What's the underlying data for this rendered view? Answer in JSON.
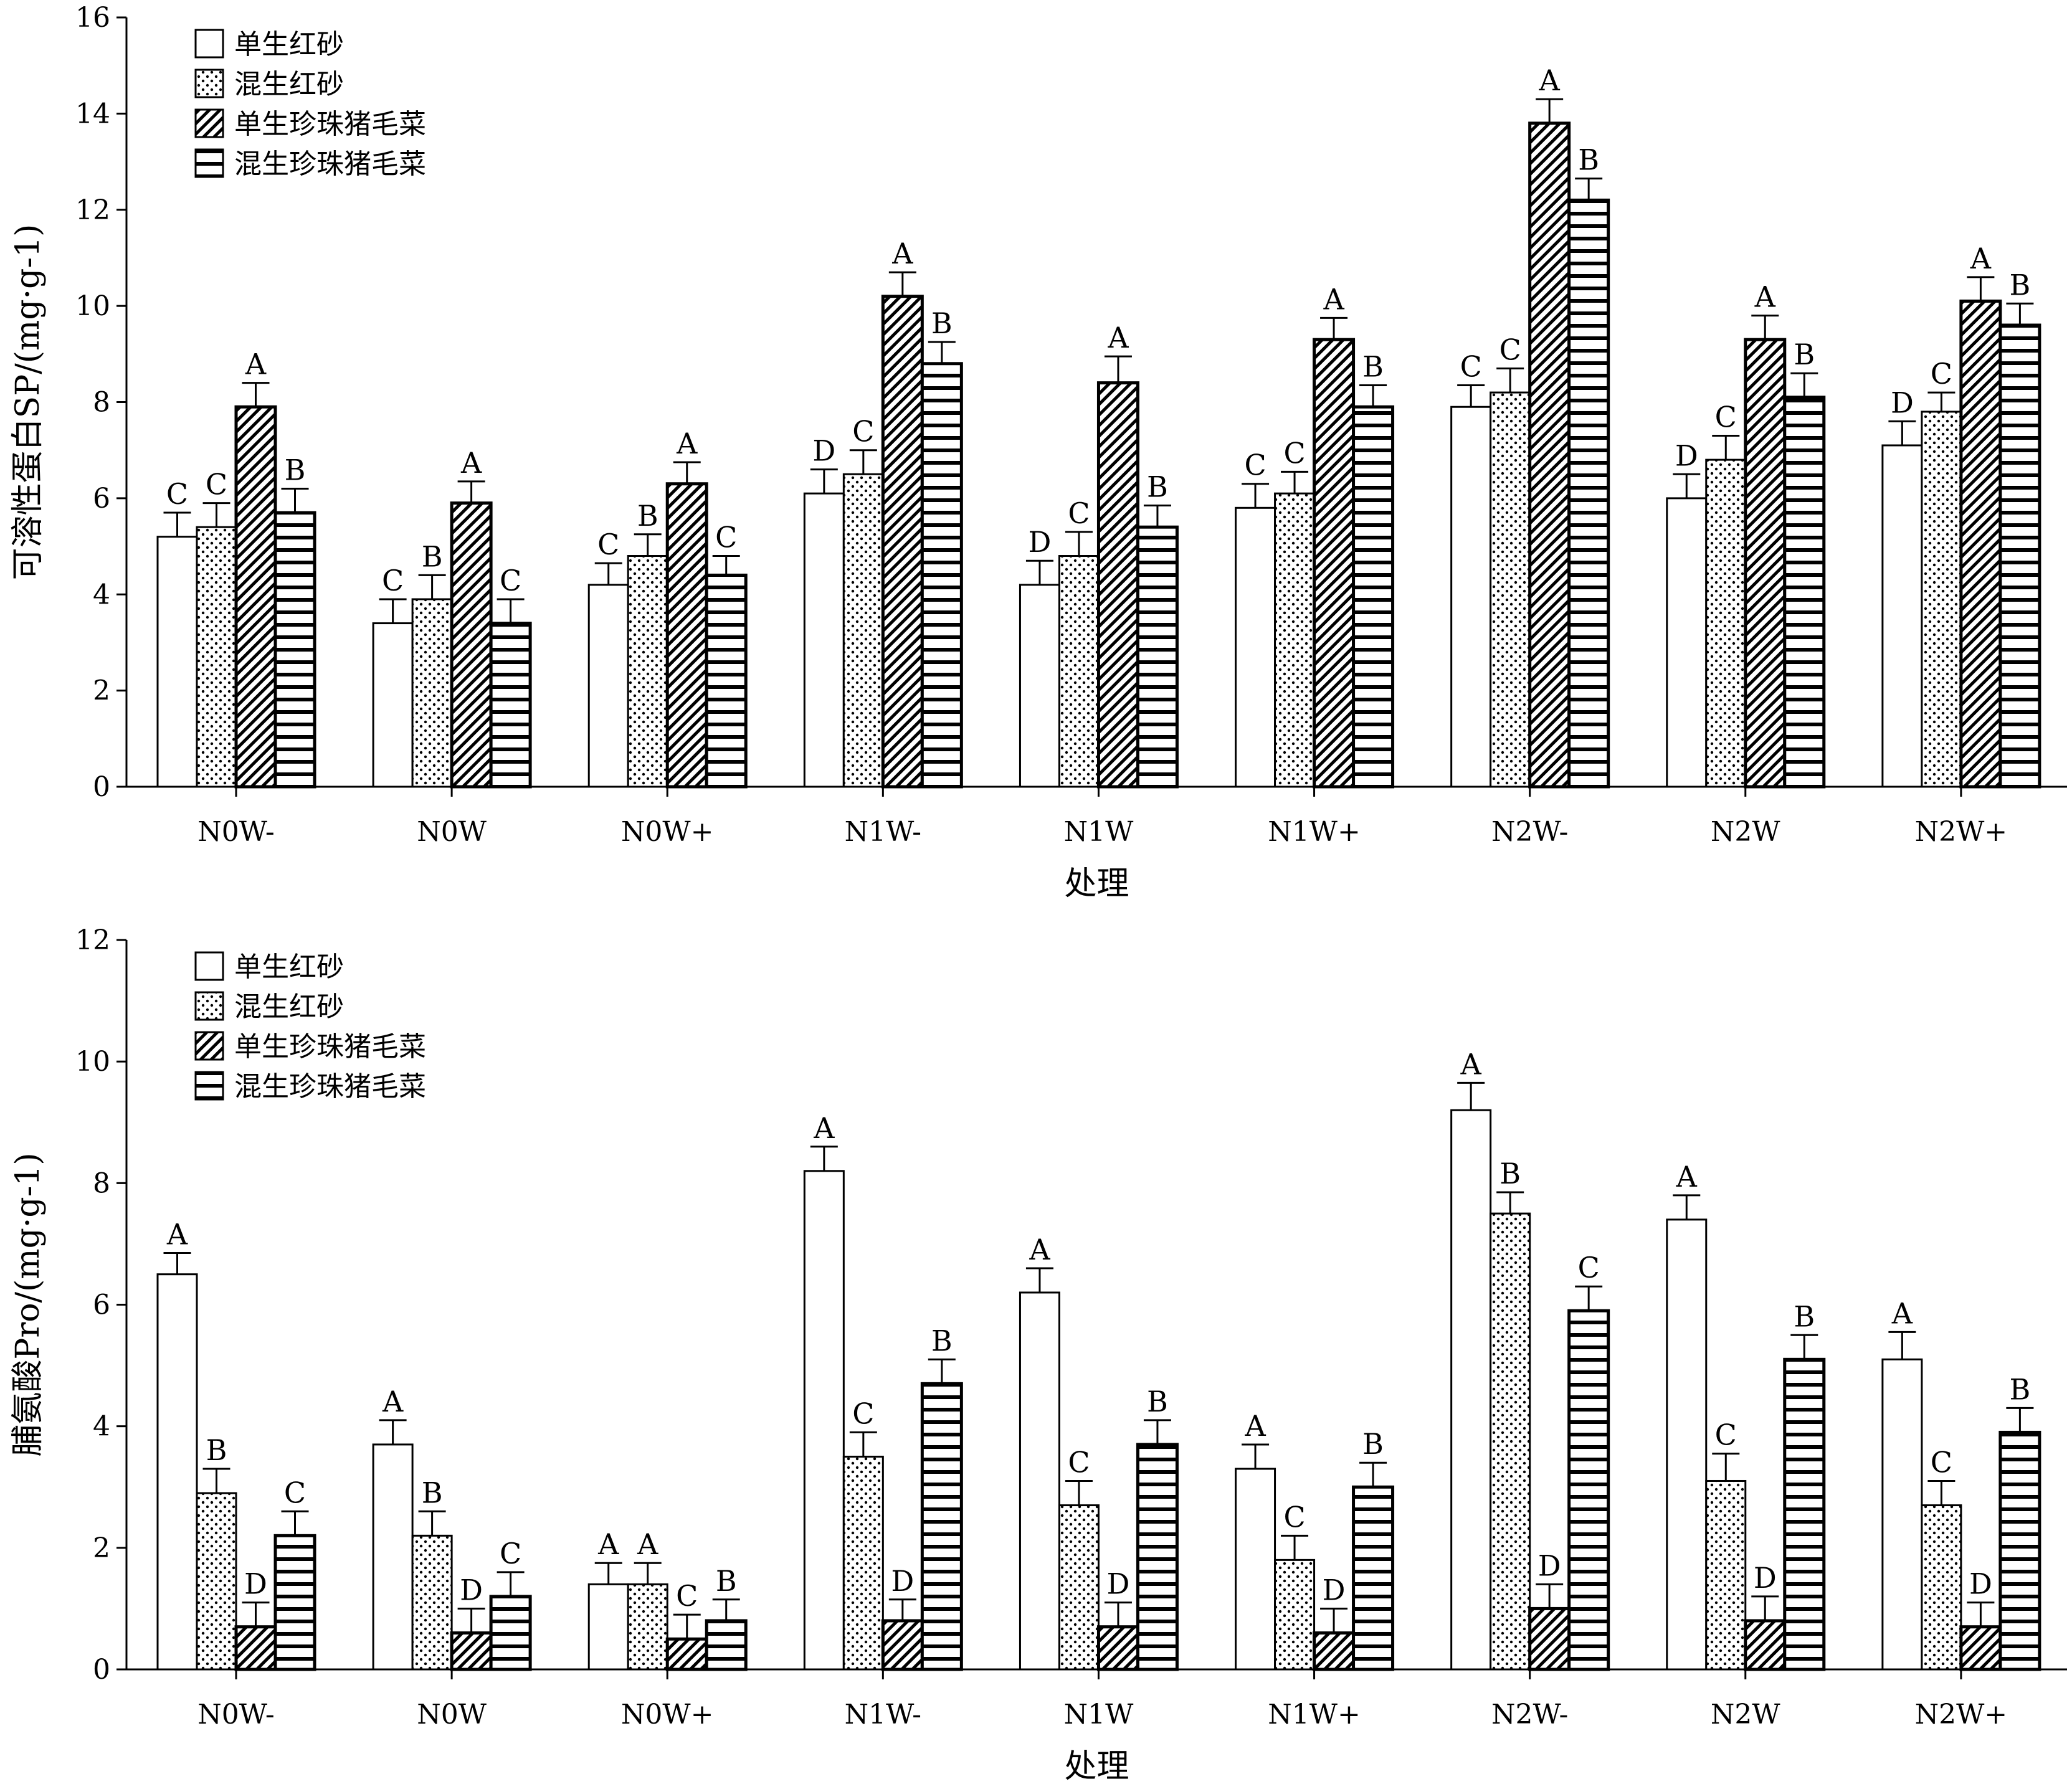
{
  "chart_data": [
    {
      "type": "bar",
      "ylabel": "可溶性蛋白SP/(mg·g-1)",
      "xlabel": "处理",
      "ylim": [
        0,
        16
      ],
      "yticks": [
        "0",
        "2",
        "4",
        "6",
        "8",
        "10",
        "12",
        "14",
        "16"
      ],
      "categories": [
        "N0W-",
        "N0W",
        "N0W+",
        "N1W-",
        "N1W",
        "N1W+",
        "N2W-",
        "N2W",
        "N2W+"
      ],
      "legend_position": "top-left",
      "series": [
        {
          "name": "单生红砂",
          "pattern": "open",
          "values": [
            5.2,
            3.4,
            4.2,
            6.1,
            4.2,
            5.8,
            7.9,
            6.0,
            7.1
          ],
          "errors": [
            0.5,
            0.5,
            0.45,
            0.5,
            0.5,
            0.5,
            0.45,
            0.5,
            0.5
          ],
          "letters": [
            "C",
            "C",
            "C",
            "D",
            "D",
            "C",
            "C",
            "D",
            "D"
          ]
        },
        {
          "name": "混生红砂",
          "pattern": "dots",
          "values": [
            5.4,
            3.9,
            4.8,
            6.5,
            4.8,
            6.1,
            8.2,
            6.8,
            7.8
          ],
          "errors": [
            0.5,
            0.5,
            0.45,
            0.5,
            0.5,
            0.45,
            0.5,
            0.5,
            0.4
          ],
          "letters": [
            "C",
            "B",
            "B",
            "C",
            "C",
            "C",
            "C",
            "C",
            "C"
          ]
        },
        {
          "name": "单生珍珠猪毛菜",
          "pattern": "diagonal",
          "values": [
            7.9,
            5.9,
            6.3,
            10.2,
            8.4,
            9.3,
            13.8,
            9.3,
            10.1
          ],
          "errors": [
            0.5,
            0.45,
            0.45,
            0.5,
            0.55,
            0.45,
            0.5,
            0.5,
            0.5
          ],
          "letters": [
            "A",
            "A",
            "A",
            "A",
            "A",
            "A",
            "A",
            "A",
            "A"
          ]
        },
        {
          "name": "混生珍珠猪毛菜",
          "pattern": "horizontal",
          "values": [
            5.7,
            3.4,
            4.4,
            8.8,
            5.4,
            7.9,
            12.2,
            8.1,
            9.6
          ],
          "errors": [
            0.5,
            0.5,
            0.4,
            0.45,
            0.45,
            0.45,
            0.45,
            0.5,
            0.45
          ],
          "letters": [
            "B",
            "C",
            "C",
            "B",
            "B",
            "B",
            "B",
            "B",
            "B"
          ]
        }
      ]
    },
    {
      "type": "bar",
      "ylabel": "脯氨酸Pro/(mg·g-1)",
      "xlabel": "处理",
      "ylim": [
        0,
        12
      ],
      "yticks": [
        "0",
        "2",
        "4",
        "6",
        "8",
        "10",
        "12"
      ],
      "categories": [
        "N0W-",
        "N0W",
        "N0W+",
        "N1W-",
        "N1W",
        "N1W+",
        "N2W-",
        "N2W",
        "N2W+"
      ],
      "legend_position": "top-left",
      "series": [
        {
          "name": "单生红砂",
          "pattern": "open",
          "values": [
            6.5,
            3.7,
            1.4,
            8.2,
            6.2,
            3.3,
            9.2,
            7.4,
            5.1
          ],
          "errors": [
            0.35,
            0.4,
            0.35,
            0.4,
            0.4,
            0.4,
            0.45,
            0.4,
            0.45
          ],
          "letters": [
            "A",
            "A",
            "A",
            "A",
            "A",
            "A",
            "A",
            "A",
            "A"
          ]
        },
        {
          "name": "混生红砂",
          "pattern": "dots",
          "values": [
            2.9,
            2.2,
            1.4,
            3.5,
            2.7,
            1.8,
            7.5,
            3.1,
            2.7
          ],
          "errors": [
            0.4,
            0.4,
            0.35,
            0.4,
            0.4,
            0.4,
            0.35,
            0.45,
            0.4
          ],
          "letters": [
            "B",
            "B",
            "A",
            "C",
            "C",
            "C",
            "B",
            "C",
            "C"
          ]
        },
        {
          "name": "单生珍珠猪毛菜",
          "pattern": "diagonal",
          "values": [
            0.7,
            0.6,
            0.5,
            0.8,
            0.7,
            0.6,
            1.0,
            0.8,
            0.7
          ],
          "errors": [
            0.4,
            0.4,
            0.4,
            0.35,
            0.4,
            0.4,
            0.4,
            0.4,
            0.4
          ],
          "letters": [
            "D",
            "D",
            "C",
            "D",
            "D",
            "D",
            "D",
            "D",
            "D"
          ]
        },
        {
          "name": "混生珍珠猪毛菜",
          "pattern": "horizontal",
          "values": [
            2.2,
            1.2,
            0.8,
            4.7,
            3.7,
            3.0,
            5.9,
            5.1,
            3.9
          ],
          "errors": [
            0.4,
            0.4,
            0.35,
            0.4,
            0.4,
            0.4,
            0.4,
            0.4,
            0.4
          ],
          "letters": [
            "C",
            "C",
            "B",
            "B",
            "B",
            "B",
            "C",
            "B",
            "B"
          ]
        }
      ]
    }
  ]
}
